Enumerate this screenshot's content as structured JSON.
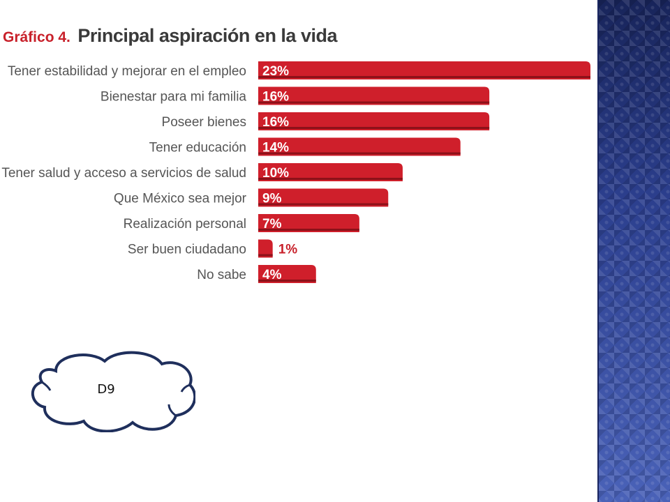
{
  "title": {
    "prefix": "Gráfico 4.",
    "main": "Principal aspiración en la vida"
  },
  "callout": {
    "text": "D9"
  },
  "colors": {
    "bar": "#cf1f2b",
    "bar_shadow": "#8c1119",
    "label_text": "#555555",
    "value_text": "#ffffff",
    "value_outside": "#c8202a",
    "side_band": "#2f4494"
  },
  "chart_data": {
    "type": "bar",
    "orientation": "horizontal",
    "title": "Principal aspiración en la vida",
    "categories": [
      "Tener estabilidad y mejorar en el empleo",
      "Bienestar para mi familia",
      "Poseer bienes",
      "Tener educación",
      "Tener salud y acceso a servicios de salud",
      "Que México sea mejor",
      "Realización personal",
      "Ser buen ciudadano",
      "No sabe"
    ],
    "values": [
      23,
      16,
      16,
      14,
      10,
      9,
      7,
      1,
      4
    ],
    "value_labels": [
      "23%",
      "16%",
      "16%",
      "14%",
      "10%",
      "9%",
      "7%",
      "1%",
      "4%"
    ],
    "unit": "%",
    "xlim": [
      0,
      23
    ],
    "grid": false,
    "legend": "none"
  }
}
